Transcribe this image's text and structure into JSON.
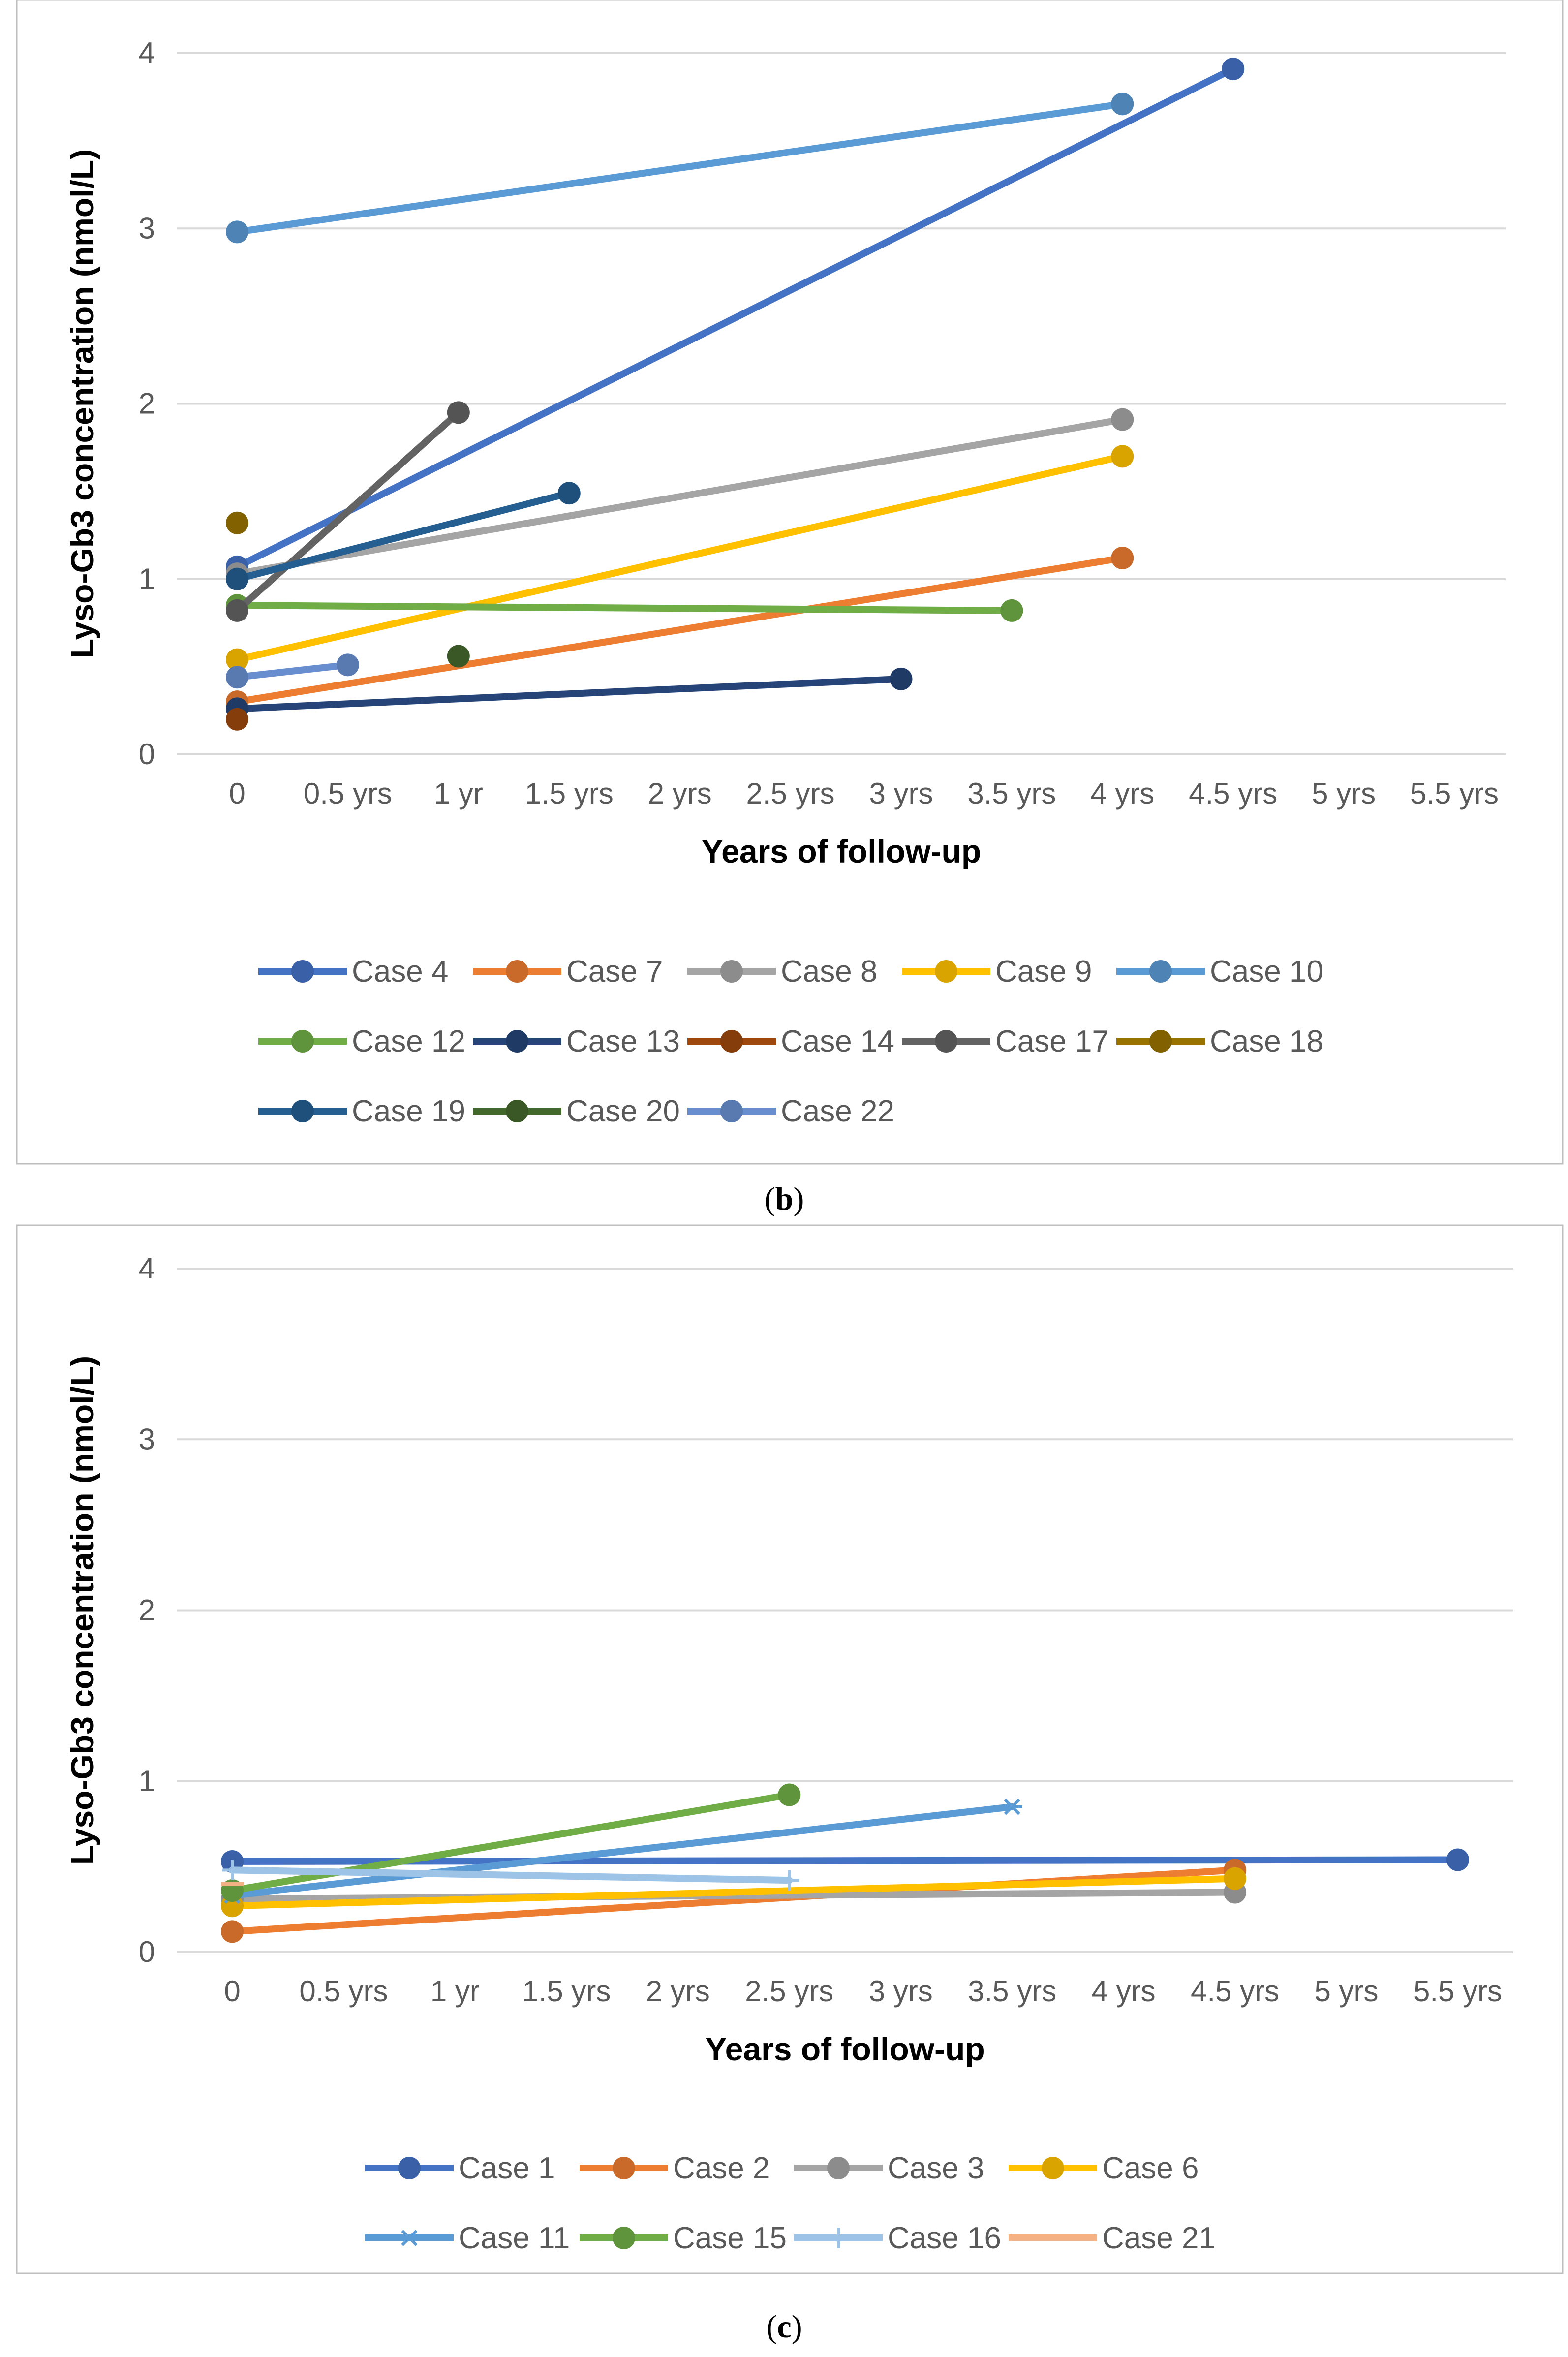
{
  "chart_data": [
    {
      "type": "line",
      "panel_label": "b",
      "title": "",
      "xlabel": "Years of follow-up",
      "ylabel": "Lyso-Gb3 concentration (nmol/L)",
      "categories": [
        "0",
        "0.5 yrs",
        "1 yr",
        "1.5 yrs",
        "2 yrs",
        "2.5 yrs",
        "3 yrs",
        "3.5 yrs",
        "4 yrs",
        "4.5 yrs",
        "5 yrs",
        "5.5 yrs"
      ],
      "xlim": [
        0,
        5.5
      ],
      "ylim": [
        0,
        4
      ],
      "yticks": [
        "0",
        "1",
        "2",
        "3",
        "4"
      ],
      "grid": true,
      "legend_position": "bottom",
      "series": [
        {
          "name": "Case 4",
          "color": "#4472C4",
          "points": [
            [
              0,
              1.07
            ],
            [
              4.5,
              3.91
            ]
          ]
        },
        {
          "name": "Case 7",
          "color": "#ED7D31",
          "points": [
            [
              0,
              0.3
            ],
            [
              4,
              1.12
            ]
          ]
        },
        {
          "name": "Case 8",
          "color": "#A5A5A5",
          "points": [
            [
              0,
              1.03
            ],
            [
              4,
              1.91
            ]
          ]
        },
        {
          "name": "Case 9",
          "color": "#FFC000",
          "points": [
            [
              0,
              0.54
            ],
            [
              4,
              1.7
            ]
          ]
        },
        {
          "name": "Case 10",
          "color": "#5B9BD5",
          "points": [
            [
              0,
              2.98
            ],
            [
              4,
              3.71
            ]
          ]
        },
        {
          "name": "Case 12",
          "color": "#70AD47",
          "points": [
            [
              0,
              0.85
            ],
            [
              3.5,
              0.82
            ]
          ]
        },
        {
          "name": "Case 13",
          "color": "#264478",
          "points": [
            [
              0,
              0.26
            ],
            [
              3,
              0.43
            ]
          ]
        },
        {
          "name": "Case 14",
          "color": "#9E480E",
          "points": [
            [
              0,
              0.2
            ]
          ]
        },
        {
          "name": "Case 17",
          "color": "#636363",
          "points": [
            [
              0,
              0.82
            ],
            [
              1,
              1.95
            ]
          ]
        },
        {
          "name": "Case 18",
          "color": "#997300",
          "points": [
            [
              0,
              1.32
            ]
          ]
        },
        {
          "name": "Case 19",
          "color": "#255E91",
          "points": [
            [
              0,
              1.0
            ],
            [
              1.5,
              1.49
            ]
          ]
        },
        {
          "name": "Case 20",
          "color": "#43682B",
          "points": [
            [
              1,
              0.56
            ]
          ]
        },
        {
          "name": "Case 22",
          "color": "#698ED0",
          "points": [
            [
              0,
              0.44
            ],
            [
              0.5,
              0.51
            ]
          ]
        }
      ]
    },
    {
      "type": "line",
      "panel_label": "c",
      "title": "",
      "xlabel": "Years of follow-up",
      "ylabel": "Lyso-Gb3 concentration (nmol/L)",
      "categories": [
        "0",
        "0.5 yrs",
        "1 yr",
        "1.5 yrs",
        "2 yrs",
        "2.5 yrs",
        "3 yrs",
        "3.5 yrs",
        "4 yrs",
        "4.5 yrs",
        "5 yrs",
        "5.5 yrs"
      ],
      "xlim": [
        0,
        5.5
      ],
      "ylim": [
        0,
        4
      ],
      "yticks": [
        "0",
        "1",
        "2",
        "3",
        "4"
      ],
      "grid": true,
      "legend_position": "bottom",
      "series": [
        {
          "name": "Case 1",
          "color": "#4472C4",
          "marker": "circle",
          "points": [
            [
              0,
              0.53
            ],
            [
              5.5,
              0.54
            ]
          ]
        },
        {
          "name": "Case 2",
          "color": "#ED7D31",
          "marker": "circle",
          "points": [
            [
              0,
              0.12
            ],
            [
              4.5,
              0.48
            ]
          ]
        },
        {
          "name": "Case 3",
          "color": "#A5A5A5",
          "marker": "circle",
          "points": [
            [
              0,
              0.31
            ],
            [
              4.5,
              0.35
            ]
          ]
        },
        {
          "name": "Case 6",
          "color": "#FFC000",
          "marker": "circle",
          "points": [
            [
              0,
              0.27
            ],
            [
              4.5,
              0.43
            ]
          ]
        },
        {
          "name": "Case 11",
          "color": "#5B9BD5",
          "marker": "star",
          "points": [
            [
              0,
              0.33
            ],
            [
              3.5,
              0.85
            ]
          ]
        },
        {
          "name": "Case 15",
          "color": "#70AD47",
          "marker": "circle",
          "points": [
            [
              0,
              0.36
            ],
            [
              2.5,
              0.92
            ]
          ]
        },
        {
          "name": "Case 16",
          "color": "#9DC3E6",
          "marker": "plus",
          "points": [
            [
              0,
              0.48
            ],
            [
              2.5,
              0.42
            ]
          ]
        },
        {
          "name": "Case 21",
          "color": "#F4B183",
          "marker": "dash",
          "points": [
            [
              0,
              0.4
            ]
          ]
        }
      ]
    }
  ]
}
